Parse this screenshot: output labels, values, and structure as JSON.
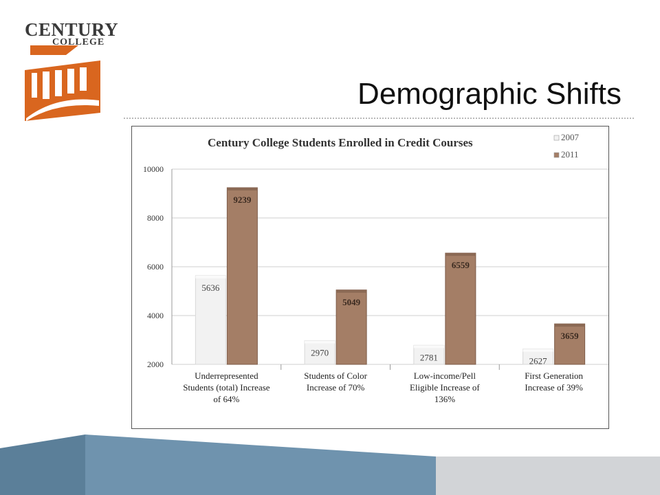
{
  "brand": {
    "name": "CENTURY",
    "sub": "COLLEGE",
    "colors": {
      "orange": "#d9661f",
      "text": "#3a3a3a"
    }
  },
  "slide": {
    "title": "Demographic Shifts"
  },
  "chart_data": {
    "type": "bar",
    "title": "Century College Students Enrolled in Credit Courses",
    "categories": [
      [
        "Underrepresented",
        "Students (total) Increase",
        "of 64%"
      ],
      [
        "Students of Color",
        "Increase of 70%"
      ],
      [
        "Low-income/Pell",
        "Eligible     Increase of",
        "136%"
      ],
      [
        "First Generation",
        "Increase of 39%"
      ]
    ],
    "series": [
      {
        "name": "2007",
        "values": [
          5636,
          2970,
          2781,
          2627
        ],
        "color": "#f2f2f2"
      },
      {
        "name": "2011",
        "values": [
          9239,
          5049,
          6559,
          3659
        ],
        "color": "#a47e66"
      }
    ],
    "ylim": [
      2000,
      10000
    ],
    "yticks": [
      2000,
      4000,
      6000,
      8000,
      10000
    ],
    "grid": true,
    "legend": "top-right"
  },
  "footer": {
    "colors": {
      "dark": "#5b7f99",
      "mid": "#6f93ae",
      "light": "#d2d4d7"
    }
  }
}
